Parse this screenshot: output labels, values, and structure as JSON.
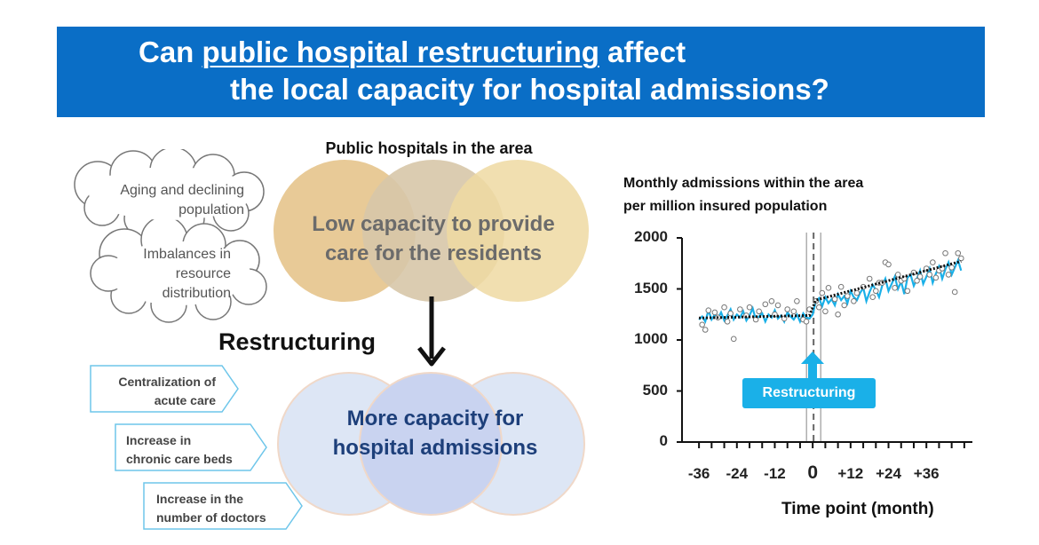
{
  "title": {
    "line1_before": "Can ",
    "line1_underlined": "public hospital restructuring",
    "line1_after": " affect",
    "line2": "the local capacity for hospital admissions?"
  },
  "clouds": [
    {
      "line1": "Aging and declining",
      "line2": "population"
    },
    {
      "line1": "Imbalances in",
      "line2": "resource",
      "line3": "distribution"
    }
  ],
  "top_circles": {
    "heading": "Public hospitals in the area",
    "line1": "Low capacity to provide",
    "line2": "care for the residents",
    "colors": [
      "#e6c48c",
      "#d7c7a9",
      "#efd9a2"
    ]
  },
  "arrow_label": "Restructuring",
  "bottom_circles": {
    "line1": "More capacity for",
    "line2": "hospital admissions",
    "text_color": "#1d3f7a"
  },
  "tags": [
    {
      "line1": "Centralization of",
      "line2": "acute care"
    },
    {
      "line1": "Increase in",
      "line2": "chronic care beds"
    },
    {
      "line1": "Increase in the",
      "line2": "number of doctors"
    }
  ],
  "chart_data": {
    "type": "line",
    "title": "Monthly admissions within the area",
    "subtitle": "per million insured population",
    "xlabel": "Time point (month)",
    "ylabel": "",
    "x_ticks": [
      -36,
      -24,
      -12,
      0,
      12,
      24,
      36
    ],
    "x_tick_labels": [
      "-36",
      "-24",
      "-12",
      "0",
      "+12",
      "+24",
      "+36"
    ],
    "y_ticks": [
      0,
      500,
      1000,
      1500,
      2000
    ],
    "xlim": [
      -38,
      50
    ],
    "ylim": [
      0,
      2000
    ],
    "annotation": "Restructuring",
    "intervention_x": 0,
    "series": [
      {
        "kind": "observed",
        "color": "#1ab0e8",
        "x": [
          -36,
          -35,
          -34,
          -33,
          -32,
          -31,
          -30,
          -29,
          -28,
          -27,
          -26,
          -25,
          -24,
          -23,
          -22,
          -21,
          -20,
          -19,
          -18,
          -17,
          -16,
          -15,
          -14,
          -13,
          -12,
          -11,
          -10,
          -9,
          -8,
          -7,
          -6,
          -5,
          -4,
          -3,
          -2,
          -1,
          0,
          1,
          2,
          3,
          4,
          5,
          6,
          7,
          8,
          9,
          10,
          11,
          12,
          13,
          14,
          15,
          16,
          17,
          18,
          19,
          20,
          21,
          22,
          23,
          24,
          25,
          26,
          27,
          28,
          29,
          30,
          31,
          32,
          33,
          34,
          35,
          36,
          37,
          38,
          39,
          40,
          41,
          42,
          43,
          44,
          45,
          46,
          47
        ],
        "y": [
          1200,
          1230,
          1180,
          1290,
          1200,
          1250,
          1210,
          1270,
          1190,
          1240,
          1300,
          1200,
          1250,
          1220,
          1280,
          1190,
          1240,
          1310,
          1200,
          1230,
          1260,
          1180,
          1250,
          1220,
          1290,
          1210,
          1240,
          1180,
          1270,
          1230,
          1200,
          1250,
          1180,
          1260,
          1220,
          1210,
          1250,
          1380,
          1410,
          1330,
          1420,
          1360,
          1400,
          1340,
          1450,
          1390,
          1430,
          1360,
          1480,
          1420,
          1390,
          1460,
          1510,
          1380,
          1470,
          1540,
          1490,
          1420,
          1530,
          1600,
          1480,
          1550,
          1620,
          1500,
          1570,
          1450,
          1610,
          1640,
          1530,
          1600,
          1680,
          1550,
          1620,
          1700,
          1560,
          1650,
          1720,
          1600,
          1690,
          1760,
          1640,
          1710,
          1780,
          1680
        ]
      },
      {
        "kind": "raw_points",
        "x": [
          -35,
          -34,
          -33,
          -31,
          -30,
          -28,
          -27,
          -26,
          -25,
          -23,
          -21,
          -20,
          -18,
          -17,
          -15,
          -13,
          -12,
          -11,
          -9,
          -8,
          -6,
          -5,
          -3,
          -2,
          -1,
          1,
          2,
          3,
          4,
          5,
          7,
          8,
          9,
          10,
          11,
          13,
          14,
          16,
          18,
          19,
          20,
          21,
          22,
          23,
          24,
          26,
          27,
          28,
          29,
          30,
          32,
          33,
          34,
          36,
          37,
          38,
          39,
          40,
          41,
          42,
          43,
          44,
          45,
          46,
          47
        ],
        "y": [
          1150,
          1100,
          1290,
          1270,
          1220,
          1320,
          1180,
          1260,
          1010,
          1300,
          1240,
          1320,
          1200,
          1280,
          1350,
          1380,
          1250,
          1340,
          1210,
          1300,
          1280,
          1380,
          1200,
          1180,
          1300,
          1380,
          1320,
          1460,
          1280,
          1510,
          1400,
          1250,
          1520,
          1340,
          1430,
          1380,
          1460,
          1520,
          1600,
          1420,
          1480,
          1560,
          1560,
          1760,
          1740,
          1510,
          1640,
          1580,
          1600,
          1480,
          1660,
          1580,
          1620,
          1700,
          1640,
          1760,
          1610,
          1680,
          1700,
          1850,
          1640,
          1710,
          1470,
          1850,
          1800
        ]
      },
      {
        "kind": "fitted",
        "color": "#111111",
        "x": [
          -36,
          -1,
          1,
          47
        ],
        "y": [
          1215,
          1240,
          1390,
          1770
        ]
      }
    ]
  }
}
